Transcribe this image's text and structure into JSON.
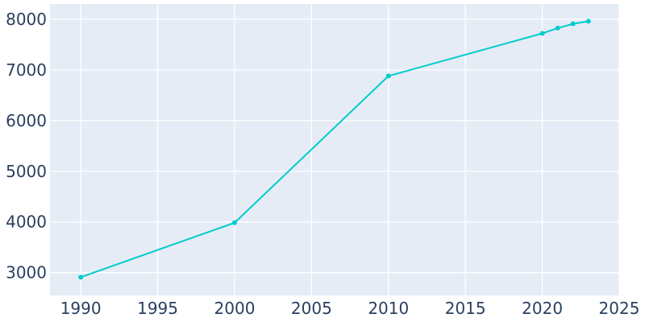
{
  "chart_data": {
    "type": "line",
    "title": "",
    "xlabel": "",
    "ylabel": "",
    "x": [
      1990,
      2000,
      2010,
      2020,
      2021,
      2022,
      2023
    ],
    "series": [
      {
        "values": [
          2910,
          3985,
          6880,
          7720,
          7825,
          7910,
          7960
        ]
      }
    ],
    "xlim": [
      1988,
      2025
    ],
    "ylim": [
      2550,
      8300
    ],
    "x_ticks": [
      1990,
      1995,
      2000,
      2005,
      2010,
      2015,
      2020,
      2025
    ],
    "y_ticks": [
      3000,
      4000,
      5000,
      6000,
      7000,
      8000
    ],
    "x_tick_labels": [
      "1990",
      "1995",
      "2000",
      "2005",
      "2010",
      "2015",
      "2020",
      "2025"
    ],
    "y_tick_labels": [
      "3000",
      "4000",
      "5000",
      "6000",
      "7000",
      "8000"
    ],
    "grid": true,
    "legend": "none",
    "colors": {
      "plot_background": "#e5ecf6",
      "grid": "#ffffff",
      "line": "#00cccc",
      "tick_text": "#2a3f5f"
    }
  }
}
